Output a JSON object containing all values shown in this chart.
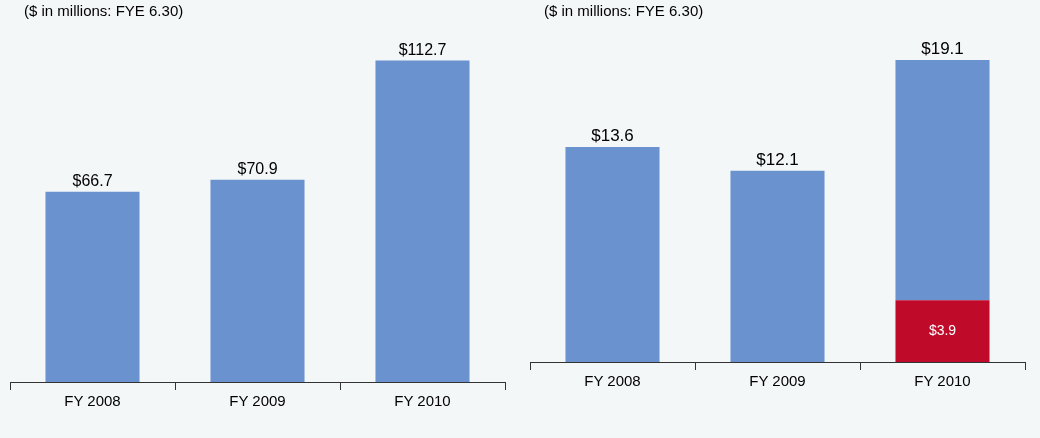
{
  "chart_data": [
    {
      "type": "bar",
      "subtitle": "($ in millions: FYE 6.30)",
      "categories": [
        "FY 2008",
        "FY 2009",
        "FY 2010"
      ],
      "series": [
        {
          "color": "#6a92cf",
          "values": [
            66.7,
            70.9,
            112.7
          ],
          "value_labels": [
            "$66.7",
            "$70.9",
            "$112.7"
          ]
        }
      ],
      "tick_labels": "x"
    },
    {
      "type": "bar",
      "subtitle": "($ in millions: FYE 6.30)",
      "categories": [
        "FY 2008",
        "FY 2009",
        "FY 2010"
      ],
      "stacked": true,
      "series": [
        {
          "color": "#c00a2a",
          "values": [
            null,
            null,
            3.9
          ],
          "value_labels": [
            null,
            null,
            "$3.9"
          ]
        },
        {
          "color": "#6a92cf",
          "values": [
            13.6,
            12.1,
            15.2
          ]
        }
      ],
      "totals": [
        "$13.6",
        "$12.1",
        "$19.1"
      ],
      "tick_labels": "x"
    }
  ]
}
